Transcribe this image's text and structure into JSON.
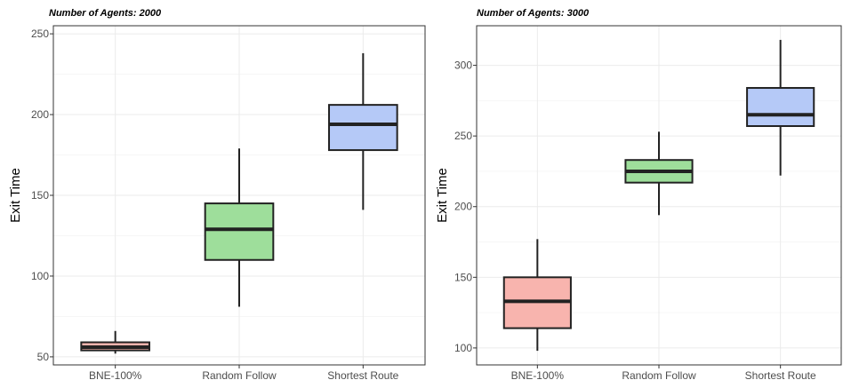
{
  "chart_data": [
    {
      "type": "box",
      "title": "Number of Agents: 2000",
      "ylabel": "Exit Time",
      "xlabel": "",
      "categories": [
        "BNE-100%",
        "Random Follow",
        "Shortest Route"
      ],
      "ylim": [
        45,
        255
      ],
      "yticks": [
        50,
        100,
        150,
        200,
        250
      ],
      "grid": true,
      "boxes": [
        {
          "category": "BNE-100%",
          "color": "#f8b4ae",
          "whisker_low": 52,
          "q1": 54,
          "median": 56,
          "q3": 59,
          "whisker_high": 66
        },
        {
          "category": "Random Follow",
          "color": "#9ede9b",
          "whisker_low": 81,
          "q1": 110,
          "median": 129,
          "q3": 145,
          "whisker_high": 179
        },
        {
          "category": "Shortest Route",
          "color": "#b5c9f7",
          "whisker_low": 141,
          "q1": 178,
          "median": 194,
          "q3": 206,
          "whisker_high": 238
        }
      ]
    },
    {
      "type": "box",
      "title": "Number of Agents: 3000",
      "ylabel": "Exit Time",
      "xlabel": "",
      "categories": [
        "BNE-100%",
        "Random Follow",
        "Shortest Route"
      ],
      "ylim": [
        88,
        328
      ],
      "yticks": [
        100,
        150,
        200,
        250,
        300
      ],
      "grid": true,
      "boxes": [
        {
          "category": "BNE-100%",
          "color": "#f8b4ae",
          "whisker_low": 98,
          "q1": 114,
          "median": 133,
          "q3": 150,
          "whisker_high": 177
        },
        {
          "category": "Random Follow",
          "color": "#9ede9b",
          "whisker_low": 194,
          "q1": 217,
          "median": 225,
          "q3": 233,
          "whisker_high": 253
        },
        {
          "category": "Shortest Route",
          "color": "#b5c9f7",
          "whisker_low": 222,
          "q1": 257,
          "median": 265,
          "q3": 284,
          "whisker_high": 318
        }
      ]
    }
  ]
}
